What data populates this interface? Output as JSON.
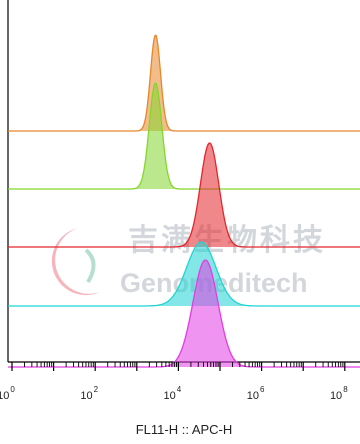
{
  "chart_data": {
    "type": "area",
    "subtype": "overlaid-offset-histograms",
    "xlabel": "FL11-H :: APC-H",
    "xscale": "log",
    "xlim": [
      1,
      100000000
    ],
    "xticks": [
      {
        "base": "10",
        "exp": "0",
        "value": 1
      },
      {
        "base": "10",
        "exp": "2",
        "value": 100
      },
      {
        "base": "10",
        "exp": "4",
        "value": 10000
      },
      {
        "base": "10",
        "exp": "6",
        "value": 1000000
      },
      {
        "base": "10",
        "exp": "8",
        "value": 100000000
      }
    ],
    "grid": false,
    "legend": "none",
    "series": [
      {
        "color": "#e8862a",
        "peak_log": 3.45,
        "sigma_log": 0.12,
        "rel_height": 1.0
      },
      {
        "color": "#84d62e",
        "peak_log": 3.45,
        "sigma_log": 0.15,
        "rel_height": 1.0
      },
      {
        "color": "#e3262c",
        "peak_log": 4.75,
        "sigma_log": 0.22,
        "rel_height": 1.0
      },
      {
        "color": "#1fd3d4",
        "peak_log": 4.55,
        "sigma_log": 0.35,
        "rel_height": 1.0
      },
      {
        "color": "#e23ce3",
        "peak_log": 4.65,
        "sigma_log": 0.3,
        "rel_height": 1.0
      }
    ]
  },
  "watermark": {
    "logo_text_cn": "吉满生物科技",
    "logo_text_en": "Genomeditech"
  }
}
